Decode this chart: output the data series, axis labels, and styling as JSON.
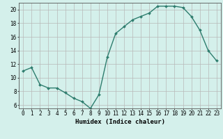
{
  "x": [
    0,
    1,
    2,
    3,
    4,
    5,
    6,
    7,
    8,
    9,
    10,
    11,
    12,
    13,
    14,
    15,
    16,
    17,
    18,
    19,
    20,
    21,
    22,
    23
  ],
  "y": [
    11.0,
    11.5,
    9.0,
    8.5,
    8.5,
    7.8,
    7.0,
    6.5,
    5.5,
    7.5,
    13.0,
    16.5,
    17.5,
    18.5,
    19.0,
    19.5,
    20.5,
    20.5,
    20.5,
    20.3,
    19.0,
    17.0,
    14.0,
    12.5
  ],
  "line_color": "#2e7d6e",
  "marker": "D",
  "marker_size": 2.0,
  "bg_color": "#d4f0eb",
  "grid_color": "#b8b8b8",
  "xlabel": "Humidex (Indice chaleur)",
  "xlim": [
    -0.5,
    23.5
  ],
  "ylim": [
    5.5,
    21.0
  ],
  "yticks": [
    6,
    8,
    10,
    12,
    14,
    16,
    18,
    20
  ],
  "xticks": [
    0,
    1,
    2,
    3,
    4,
    5,
    6,
    7,
    8,
    9,
    10,
    11,
    12,
    13,
    14,
    15,
    16,
    17,
    18,
    19,
    20,
    21,
    22,
    23
  ],
  "xlabel_fontsize": 6.5,
  "tick_fontsize": 5.5,
  "linewidth": 1.0
}
